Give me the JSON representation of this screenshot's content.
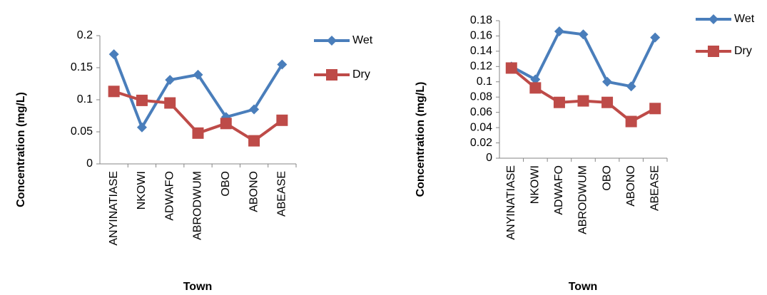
{
  "chart_data": [
    {
      "type": "line",
      "x_label": "Town",
      "y_label": "Concentration (mg/L)",
      "categories": [
        "ANYINATIASE",
        "NKOWI",
        "ADWAFO",
        "ABRODWUM",
        "OBO",
        "ABONO",
        "ABEASE"
      ],
      "series": [
        {
          "name": "Wet",
          "color": "#4a7ebb",
          "marker": "diamond",
          "values": [
            0.171,
            0.057,
            0.131,
            0.139,
            0.073,
            0.085,
            0.155
          ]
        },
        {
          "name": "Dry",
          "color": "#be4b48",
          "marker": "square",
          "values": [
            0.113,
            0.099,
            0.095,
            0.048,
            0.063,
            0.036,
            0.068
          ]
        }
      ],
      "ylim": [
        0,
        0.2
      ],
      "yticks": [
        0,
        0.05,
        0.1,
        0.15,
        0.2
      ],
      "grid": false,
      "legend": "right"
    },
    {
      "type": "line",
      "x_label": "Town",
      "y_label": "Concentration (mg/L)",
      "categories": [
        "ANYINATIASE",
        "NKOWI",
        "ADWAFO",
        "ABRODWUM",
        "OBO",
        "ABONO",
        "ABEASE"
      ],
      "series": [
        {
          "name": "Wet",
          "color": "#4a7ebb",
          "marker": "diamond",
          "values": [
            0.12,
            0.103,
            0.166,
            0.162,
            0.1,
            0.094,
            0.158
          ]
        },
        {
          "name": "Dry",
          "color": "#be4b48",
          "marker": "square",
          "values": [
            0.118,
            0.092,
            0.073,
            0.075,
            0.073,
            0.048,
            0.065
          ]
        }
      ],
      "ylim": [
        0,
        0.18
      ],
      "yticks": [
        0,
        0.02,
        0.04,
        0.06,
        0.08,
        0.1,
        0.12,
        0.14,
        0.16,
        0.18
      ],
      "grid": false,
      "legend": "right"
    }
  ]
}
